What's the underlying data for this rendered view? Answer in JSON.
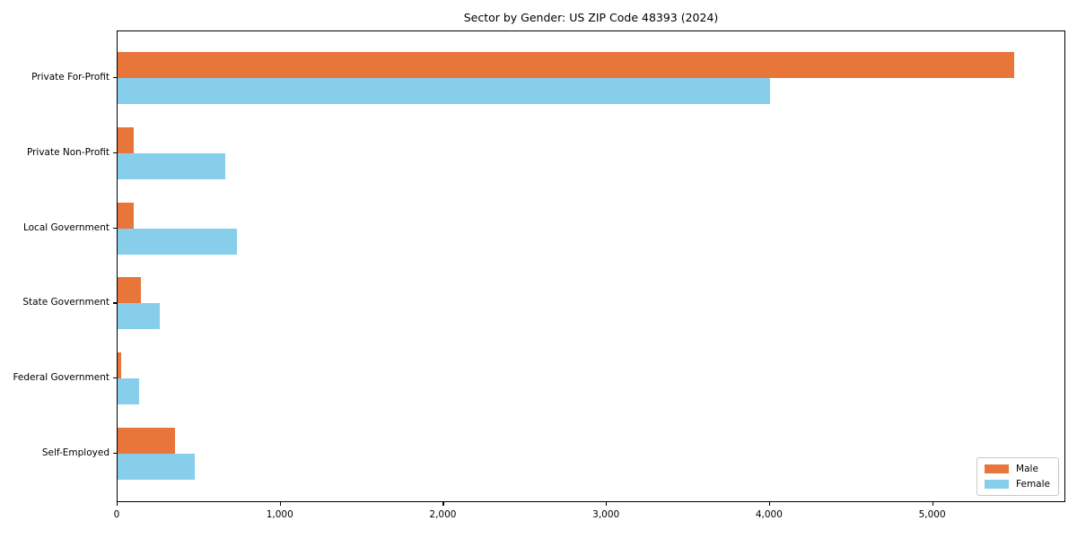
{
  "title": "Sector by Gender: US ZIP Code 48393 (2024)",
  "chart_data": {
    "type": "bar",
    "orientation": "horizontal",
    "title": "Sector by Gender: US ZIP Code 48393 (2024)",
    "categories": [
      "Private For-Profit",
      "Private Non-Profit",
      "Local Government",
      "State Government",
      "Federal Government",
      "Self-Employed"
    ],
    "series": [
      {
        "name": "Male",
        "color": "#e8763b",
        "values": [
          5500,
          100,
          100,
          145,
          20,
          350
        ]
      },
      {
        "name": "Female",
        "color": "#87ceeb",
        "values": [
          4000,
          660,
          730,
          260,
          130,
          475
        ]
      }
    ],
    "xlabel": "",
    "ylabel": "",
    "xlim": [
      0,
      5800
    ],
    "xticks": {
      "values": [
        0,
        1000,
        2000,
        3000,
        4000,
        5000
      ],
      "labels": [
        "0",
        "1,000",
        "2,000",
        "3,000",
        "4,000",
        "5,000"
      ]
    },
    "grid": false,
    "background": "#ffffff",
    "spine_color": "#000000",
    "legend": {
      "position": "lower right",
      "entries": [
        "Male",
        "Female"
      ]
    }
  }
}
